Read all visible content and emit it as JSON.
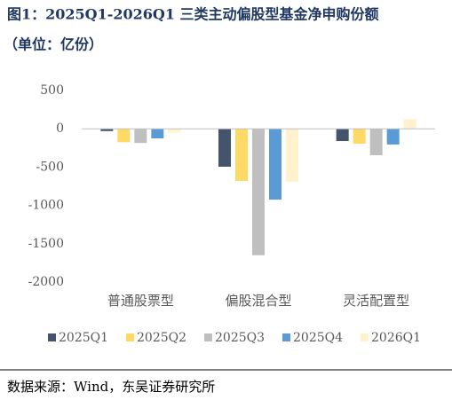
{
  "chart_data": {
    "type": "bar",
    "title": "图1：2025Q1-2026Q1 三类主动偏股型基金净申购份额",
    "subtitle": "（单位：亿份）",
    "source": "数据来源：Wind，东吴证券研究所",
    "categories": [
      "普通股票型",
      "偏股混合型",
      "灵活配置型"
    ],
    "series": [
      {
        "name": "2025Q1",
        "color": "#44546a",
        "values": [
          -30,
          -495,
          -160
        ]
      },
      {
        "name": "2025Q2",
        "color": "#ffd966",
        "values": [
          -175,
          -680,
          -195
        ]
      },
      {
        "name": "2025Q3",
        "color": "#bfbfbf",
        "values": [
          -185,
          -1650,
          -345
        ]
      },
      {
        "name": "2025Q4",
        "color": "#5b9bd5",
        "values": [
          -125,
          -925,
          -205
        ]
      },
      {
        "name": "2026Q1",
        "color": "#fff2cc",
        "values": [
          -50,
          -690,
          125
        ]
      }
    ],
    "ylim": [
      -2000,
      500
    ],
    "yticks": [
      500,
      0,
      -500,
      -1000,
      -1500,
      -2000
    ],
    "legend": "bottom"
  }
}
